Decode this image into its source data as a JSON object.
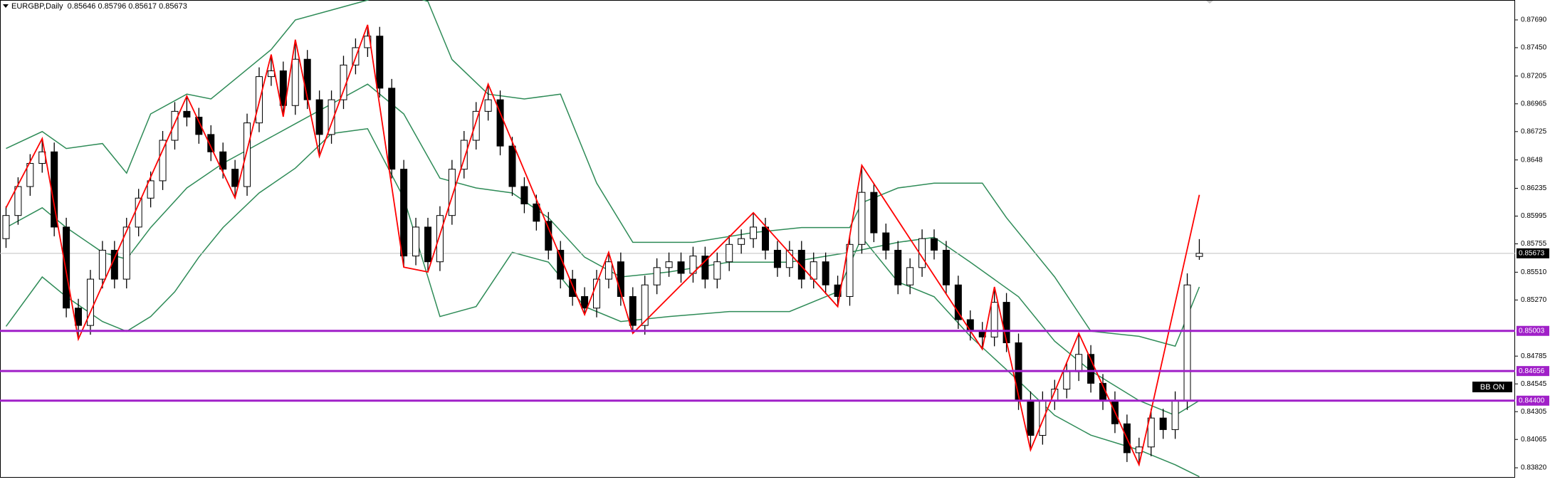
{
  "chart_data": {
    "type": "candlestick",
    "title": "EURGBP,Daily  0.85646 0.85796 0.85617 0.85673",
    "xlim": [
      -0.5,
      125.2
    ],
    "ylim": [
      0.83728,
      0.87862
    ],
    "yticks": [
      {
        "value": 0.8769,
        "label": "0.87690"
      },
      {
        "value": 0.8745,
        "label": "0.87450"
      },
      0.87205,
      0.86965,
      0.86725,
      0.8648,
      0.86235,
      0.85995,
      0.85755,
      {
        "value": 0.8551,
        "label": "0.85510"
      },
      {
        "value": 0.8527,
        "label": "0.85270"
      },
      0.84785,
      0.84545,
      0.84305,
      0.84065,
      {
        "value": 0.8382,
        "label": "0.83820"
      }
    ],
    "candle_up_color": "#ffffff",
    "candle_down_color": "#000000",
    "ohlc": [
      [
        0.858,
        0.8608,
        0.8572,
        0.86
      ],
      [
        0.86,
        0.8633,
        0.8592,
        0.8625
      ],
      [
        0.8625,
        0.8653,
        0.8617,
        0.8645
      ],
      [
        0.8645,
        0.86665,
        0.8637,
        0.8655
      ],
      [
        0.8655,
        0.8663,
        0.8582,
        0.859
      ],
      [
        0.859,
        0.8598,
        0.8512,
        0.852
      ],
      [
        0.852,
        0.8528,
        0.84931,
        0.8505
      ],
      [
        0.8505,
        0.8553,
        0.8497,
        0.8545
      ],
      [
        0.8545,
        0.8578,
        0.8537,
        0.857
      ],
      [
        0.857,
        0.8578,
        0.8537,
        0.8545
      ],
      [
        0.8545,
        0.8598,
        0.8537,
        0.859
      ],
      [
        0.859,
        0.8623,
        0.8582,
        0.8615
      ],
      [
        0.8615,
        0.8638,
        0.8607,
        0.863
      ],
      [
        0.863,
        0.8673,
        0.8622,
        0.8665
      ],
      [
        0.8665,
        0.8698,
        0.8657,
        0.869
      ],
      [
        0.869,
        0.87032,
        0.8677,
        0.8685
      ],
      [
        0.8685,
        0.8693,
        0.8662,
        0.867
      ],
      [
        0.867,
        0.8678,
        0.8647,
        0.8655
      ],
      [
        0.8655,
        0.8663,
        0.8632,
        0.864
      ],
      [
        0.864,
        0.8648,
        0.86152,
        0.8625
      ],
      [
        0.8625,
        0.8688,
        0.8617,
        0.868
      ],
      [
        0.868,
        0.8728,
        0.8672,
        0.872
      ],
      [
        0.872,
        0.87391,
        0.8712,
        0.8725
      ],
      [
        0.8725,
        0.8733,
        0.86853,
        0.8695
      ],
      [
        0.8695,
        0.87519,
        0.8687,
        0.8735
      ],
      [
        0.8735,
        0.8743,
        0.8692,
        0.87
      ],
      [
        0.87,
        0.8708,
        0.86511,
        0.867
      ],
      [
        0.867,
        0.8708,
        0.8662,
        0.87
      ],
      [
        0.87,
        0.8738,
        0.8692,
        0.873
      ],
      [
        0.873,
        0.8753,
        0.8722,
        0.8745
      ],
      [
        0.8745,
        0.87647,
        0.8737,
        0.8755
      ],
      [
        0.8755,
        0.8763,
        0.8702,
        0.871
      ],
      [
        0.871,
        0.8718,
        0.8632,
        0.864
      ],
      [
        0.864,
        0.8648,
        0.85554,
        0.8565
      ],
      [
        0.8565,
        0.8598,
        0.8557,
        0.859
      ],
      [
        0.859,
        0.8598,
        0.85512,
        0.856
      ],
      [
        0.856,
        0.8608,
        0.8552,
        0.86
      ],
      [
        0.86,
        0.8648,
        0.8592,
        0.864
      ],
      [
        0.864,
        0.8673,
        0.8632,
        0.8665
      ],
      [
        0.8665,
        0.8698,
        0.8657,
        0.869
      ],
      [
        0.869,
        0.87135,
        0.8682,
        0.87
      ],
      [
        0.87,
        0.8708,
        0.8652,
        0.866
      ],
      [
        0.866,
        0.8668,
        0.8617,
        0.8625
      ],
      [
        0.8625,
        0.8633,
        0.8602,
        0.861
      ],
      [
        0.861,
        0.8618,
        0.8587,
        0.8595
      ],
      [
        0.8595,
        0.8603,
        0.8562,
        0.857
      ],
      [
        0.857,
        0.8578,
        0.8537,
        0.8545
      ],
      [
        0.8545,
        0.8553,
        0.8522,
        0.853
      ],
      [
        0.853,
        0.8538,
        0.85144,
        0.852
      ],
      [
        0.852,
        0.8553,
        0.8512,
        0.8545
      ],
      [
        0.8545,
        0.85682,
        0.8537,
        0.856
      ],
      [
        0.856,
        0.8568,
        0.8522,
        0.853
      ],
      [
        0.853,
        0.8538,
        0.84982,
        0.8505
      ],
      [
        0.8505,
        0.8548,
        0.8497,
        0.854
      ],
      [
        0.854,
        0.8563,
        0.8532,
        0.8555
      ],
      [
        0.8555,
        0.8568,
        0.8547,
        0.856
      ],
      [
        0.856,
        0.8568,
        0.8542,
        0.855
      ],
      [
        0.855,
        0.8573,
        0.8542,
        0.8565
      ],
      [
        0.8565,
        0.8573,
        0.8537,
        0.8545
      ],
      [
        0.8545,
        0.8568,
        0.8537,
        0.856
      ],
      [
        0.856,
        0.8583,
        0.8552,
        0.8575
      ],
      [
        0.8575,
        0.8588,
        0.8567,
        0.858
      ],
      [
        0.858,
        0.86024,
        0.8572,
        0.859
      ],
      [
        0.859,
        0.8598,
        0.8562,
        0.857
      ],
      [
        0.857,
        0.8578,
        0.8547,
        0.8555
      ],
      [
        0.8555,
        0.8578,
        0.8547,
        0.857
      ],
      [
        0.857,
        0.8578,
        0.8537,
        0.8545
      ],
      [
        0.8545,
        0.8568,
        0.8537,
        0.856
      ],
      [
        0.856,
        0.8568,
        0.8532,
        0.854
      ],
      [
        0.854,
        0.8548,
        0.85213,
        0.853
      ],
      [
        0.853,
        0.8583,
        0.8522,
        0.8575
      ],
      [
        0.8575,
        0.86434,
        0.8567,
        0.862
      ],
      [
        0.862,
        0.8628,
        0.8577,
        0.8585
      ],
      [
        0.8585,
        0.8593,
        0.8562,
        0.857
      ],
      [
        0.857,
        0.8578,
        0.8532,
        0.854
      ],
      [
        0.854,
        0.8563,
        0.8532,
        0.8555
      ],
      [
        0.8555,
        0.8588,
        0.8547,
        0.858
      ],
      [
        0.858,
        0.8588,
        0.8562,
        0.857
      ],
      [
        0.857,
        0.8578,
        0.8532,
        0.854
      ],
      [
        0.854,
        0.8548,
        0.8502,
        0.851
      ],
      [
        0.851,
        0.8518,
        0.8492,
        0.85
      ],
      [
        0.85,
        0.8508,
        0.84845,
        0.8495
      ],
      [
        0.8495,
        0.85383,
        0.8487,
        0.8525
      ],
      [
        0.8525,
        0.8533,
        0.8482,
        0.849
      ],
      [
        0.849,
        0.8498,
        0.8432,
        0.844
      ],
      [
        0.844,
        0.8448,
        0.83974,
        0.841
      ],
      [
        0.841,
        0.8448,
        0.8402,
        0.844
      ],
      [
        0.844,
        0.8458,
        0.8432,
        0.845
      ],
      [
        0.845,
        0.8473,
        0.8442,
        0.8465
      ],
      [
        0.8465,
        0.84982,
        0.8457,
        0.848
      ],
      [
        0.848,
        0.8488,
        0.8447,
        0.8455
      ],
      [
        0.8455,
        0.8463,
        0.8432,
        0.844
      ],
      [
        0.844,
        0.8448,
        0.8412,
        0.842
      ],
      [
        0.842,
        0.8428,
        0.8387,
        0.8395
      ],
      [
        0.8395,
        0.8408,
        0.83846,
        0.84
      ],
      [
        0.84,
        0.8433,
        0.8392,
        0.8425
      ],
      [
        0.8425,
        0.8433,
        0.8407,
        0.8415
      ],
      [
        0.8415,
        0.8448,
        0.8407,
        0.844
      ],
      [
        0.844,
        0.855,
        0.8432,
        0.854
      ],
      [
        0.85646,
        0.85796,
        0.85617,
        0.85673
      ]
    ],
    "bands": [
      {
        "color": "#2e8b57",
        "x": [
          0,
          3,
          5,
          8,
          10,
          12,
          15,
          17,
          19,
          22,
          24,
          27,
          30,
          32,
          35,
          37,
          40,
          43,
          46,
          49,
          52,
          57,
          62,
          66,
          70,
          71,
          74,
          77,
          81,
          83,
          87,
          90,
          94,
          97,
          99
        ],
        "values": [
          0.86579,
          0.86725,
          0.86579,
          0.86622,
          0.86366,
          0.86878,
          0.87049,
          0.87007,
          0.87177,
          0.87434,
          0.8769,
          0.87775,
          0.87861,
          0.8795,
          0.8785,
          0.87348,
          0.87049,
          0.87007,
          0.87049,
          0.8628,
          0.85768,
          0.85768,
          0.85853,
          0.85896,
          0.85896,
          0.8611,
          0.86238,
          0.8628,
          0.8628,
          0.85981,
          0.85469,
          0.85,
          0.84956,
          0.84871,
          0.85383
        ]
      },
      {
        "color": "#2e8b57",
        "x": [
          0,
          3,
          5,
          8,
          10,
          12,
          15,
          18,
          21,
          24,
          27,
          30,
          33,
          36,
          39,
          42,
          45,
          48,
          51,
          55,
          60,
          65,
          70,
          74,
          77,
          80,
          84,
          87,
          90,
          94,
          97,
          99
        ],
        "values": [
          0.85896,
          0.86067,
          0.85896,
          0.85682,
          0.85623,
          0.85896,
          0.86238,
          0.86451,
          0.86622,
          0.86793,
          0.86964,
          0.87135,
          0.86878,
          0.86323,
          0.86238,
          0.86195,
          0.85981,
          0.8564,
          0.85469,
          0.85512,
          0.85597,
          0.85597,
          0.85682,
          0.85768,
          0.85811,
          0.85597,
          0.85298,
          0.84914,
          0.84657,
          0.84401,
          0.84273,
          0.84401
        ]
      },
      {
        "color": "#2e8b57",
        "x": [
          0,
          3,
          5,
          8,
          10,
          12,
          14,
          16,
          18,
          21,
          24,
          27,
          30,
          33,
          36,
          39,
          42,
          45,
          48,
          51,
          55,
          60,
          65,
          69,
          71,
          74,
          77,
          80,
          84,
          87,
          90,
          94,
          97,
          99
        ],
        "values": [
          0.85042,
          0.85469,
          0.85298,
          0.85084,
          0.84999,
          0.85127,
          0.85341,
          0.8564,
          0.85896,
          0.86195,
          0.86409,
          0.86708,
          0.8675,
          0.86152,
          0.85127,
          0.85213,
          0.85682,
          0.85597,
          0.85213,
          0.85084,
          0.85127,
          0.8517,
          0.8517,
          0.85341,
          0.85811,
          0.85426,
          0.85298,
          0.84956,
          0.84572,
          0.84273,
          0.84102,
          0.83974,
          0.83846,
          0.83743
        ]
      }
    ],
    "zigzag": {
      "color": "#ff0000",
      "x": [
        0,
        3,
        6,
        15,
        19,
        22,
        23,
        24,
        26,
        30,
        33,
        35,
        40,
        48,
        50,
        52,
        62,
        69,
        71,
        81,
        82,
        85,
        89,
        94,
        99
      ],
      "values": [
        0.86067,
        0.86665,
        0.84931,
        0.87032,
        0.86152,
        0.87391,
        0.86853,
        0.87519,
        0.86511,
        0.87647,
        0.85554,
        0.85512,
        0.87135,
        0.85144,
        0.85682,
        0.84982,
        0.86024,
        0.85213,
        0.86434,
        0.84845,
        0.85383,
        0.83974,
        0.84982,
        0.83846,
        0.86178
      ]
    },
    "levels": [
      0.85003,
      0.84656,
      {
        "value": 0.844,
        "label": "0.84400"
      }
    ],
    "level_color": "#a020c8",
    "last_price": 0.85673,
    "badge": "BB ON"
  }
}
